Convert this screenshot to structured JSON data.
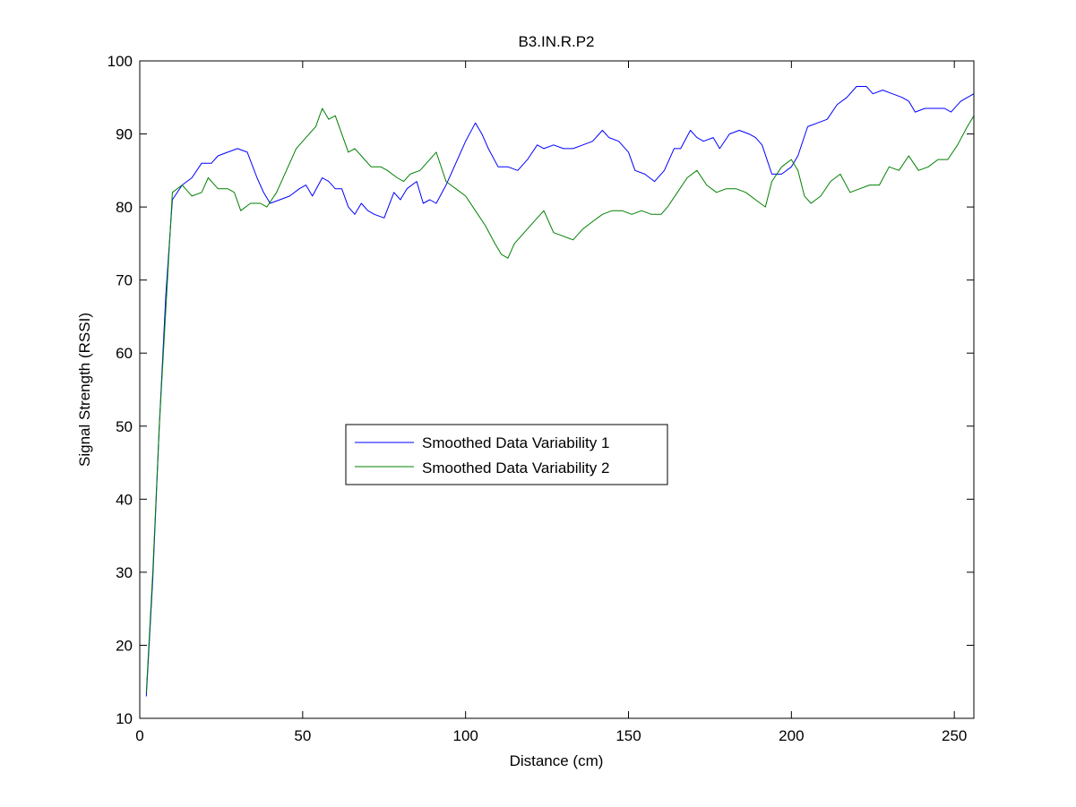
{
  "chart_data": {
    "type": "line",
    "title": "B3.IN.R.P2",
    "xlabel": "Distance (cm)",
    "ylabel": "Signal Strength (RSSI)",
    "xlim": [
      0,
      256
    ],
    "ylim": [
      10,
      100
    ],
    "xticks": [
      0,
      50,
      100,
      150,
      200,
      250
    ],
    "yticks": [
      10,
      20,
      30,
      40,
      50,
      60,
      70,
      80,
      90,
      100
    ],
    "grid": false,
    "legend_position": "center-left",
    "series": [
      {
        "name": "Smoothed Data Variability 1",
        "color": "#0000ff",
        "points": [
          [
            2,
            13
          ],
          [
            4,
            29
          ],
          [
            6,
            50
          ],
          [
            8,
            68
          ],
          [
            10,
            81
          ],
          [
            13,
            83
          ],
          [
            16,
            84
          ],
          [
            19,
            86
          ],
          [
            22,
            86
          ],
          [
            24,
            87
          ],
          [
            27,
            87.5
          ],
          [
            30,
            88
          ],
          [
            33,
            87.5
          ],
          [
            36,
            84
          ],
          [
            38,
            82
          ],
          [
            40,
            80.5
          ],
          [
            43,
            81
          ],
          [
            46,
            81.5
          ],
          [
            49,
            82.5
          ],
          [
            51,
            83
          ],
          [
            53,
            81.5
          ],
          [
            56,
            84
          ],
          [
            58,
            83.5
          ],
          [
            60,
            82.5
          ],
          [
            62,
            82.5
          ],
          [
            64,
            80
          ],
          [
            66,
            79
          ],
          [
            68,
            80.5
          ],
          [
            70,
            79.5
          ],
          [
            72,
            79
          ],
          [
            75,
            78.5
          ],
          [
            78,
            82
          ],
          [
            80,
            81
          ],
          [
            82,
            82.5
          ],
          [
            85,
            83.5
          ],
          [
            87,
            80.5
          ],
          [
            89,
            81
          ],
          [
            91,
            80.5
          ],
          [
            94,
            83
          ],
          [
            97,
            86
          ],
          [
            100,
            89
          ],
          [
            103,
            91.5
          ],
          [
            105,
            90
          ],
          [
            107,
            88
          ],
          [
            110,
            85.5
          ],
          [
            113,
            85.5
          ],
          [
            116,
            85
          ],
          [
            119,
            86.5
          ],
          [
            122,
            88.5
          ],
          [
            124,
            88
          ],
          [
            127,
            88.5
          ],
          [
            130,
            88
          ],
          [
            133,
            88
          ],
          [
            136,
            88.5
          ],
          [
            139,
            89
          ],
          [
            142,
            90.5
          ],
          [
            144,
            89.5
          ],
          [
            147,
            89
          ],
          [
            150,
            87.5
          ],
          [
            152,
            85
          ],
          [
            155,
            84.5
          ],
          [
            158,
            83.5
          ],
          [
            161,
            85
          ],
          [
            164,
            88
          ],
          [
            166,
            88
          ],
          [
            169,
            90.5
          ],
          [
            171,
            89.5
          ],
          [
            173,
            89
          ],
          [
            176,
            89.5
          ],
          [
            178,
            88
          ],
          [
            181,
            90
          ],
          [
            184,
            90.5
          ],
          [
            187,
            90
          ],
          [
            189,
            89.5
          ],
          [
            191,
            88.5
          ],
          [
            194,
            84.5
          ],
          [
            197,
            84.5
          ],
          [
            200,
            85.5
          ],
          [
            202,
            87
          ],
          [
            205,
            91
          ],
          [
            208,
            91.5
          ],
          [
            211,
            92
          ],
          [
            214,
            94
          ],
          [
            217,
            95
          ],
          [
            220,
            96.5
          ],
          [
            223,
            96.5
          ],
          [
            225,
            95.5
          ],
          [
            228,
            96
          ],
          [
            231,
            95.5
          ],
          [
            234,
            95
          ],
          [
            236,
            94.5
          ],
          [
            238,
            93
          ],
          [
            241,
            93.5
          ],
          [
            244,
            93.5
          ],
          [
            247,
            93.5
          ],
          [
            249,
            93
          ],
          [
            252,
            94.5
          ],
          [
            256,
            95.5
          ]
        ]
      },
      {
        "name": "Smoothed Data Variability 2",
        "color": "#008000",
        "points": [
          [
            2,
            13.5
          ],
          [
            4,
            30
          ],
          [
            6,
            50
          ],
          [
            8,
            66
          ],
          [
            10,
            82
          ],
          [
            13,
            83
          ],
          [
            16,
            81.5
          ],
          [
            19,
            82
          ],
          [
            21,
            84
          ],
          [
            24,
            82.5
          ],
          [
            27,
            82.5
          ],
          [
            29,
            82
          ],
          [
            31,
            79.5
          ],
          [
            34,
            80.5
          ],
          [
            37,
            80.5
          ],
          [
            39,
            80
          ],
          [
            42,
            82
          ],
          [
            45,
            85
          ],
          [
            48,
            88
          ],
          [
            51,
            89.5
          ],
          [
            54,
            91
          ],
          [
            56,
            93.5
          ],
          [
            58,
            92
          ],
          [
            60,
            92.5
          ],
          [
            62,
            90
          ],
          [
            64,
            87.5
          ],
          [
            66,
            88
          ],
          [
            68,
            87
          ],
          [
            71,
            85.5
          ],
          [
            74,
            85.5
          ],
          [
            76,
            85
          ],
          [
            79,
            84
          ],
          [
            81,
            83.5
          ],
          [
            83,
            84.5
          ],
          [
            86,
            85
          ],
          [
            89,
            86.5
          ],
          [
            91,
            87.5
          ],
          [
            94,
            83.5
          ],
          [
            97,
            82.5
          ],
          [
            100,
            81.5
          ],
          [
            103,
            79.5
          ],
          [
            106,
            77.5
          ],
          [
            109,
            75
          ],
          [
            111,
            73.5
          ],
          [
            113,
            73
          ],
          [
            115,
            75
          ],
          [
            118,
            76.5
          ],
          [
            121,
            78
          ],
          [
            124,
            79.5
          ],
          [
            127,
            76.5
          ],
          [
            130,
            76
          ],
          [
            133,
            75.5
          ],
          [
            136,
            77
          ],
          [
            139,
            78
          ],
          [
            142,
            79
          ],
          [
            145,
            79.5
          ],
          [
            148,
            79.5
          ],
          [
            151,
            79
          ],
          [
            154,
            79.5
          ],
          [
            157,
            79
          ],
          [
            160,
            79
          ],
          [
            162,
            80
          ],
          [
            165,
            82
          ],
          [
            168,
            84
          ],
          [
            171,
            85
          ],
          [
            174,
            83
          ],
          [
            177,
            82
          ],
          [
            180,
            82.5
          ],
          [
            183,
            82.5
          ],
          [
            186,
            82
          ],
          [
            189,
            81
          ],
          [
            192,
            80
          ],
          [
            194,
            83.5
          ],
          [
            197,
            85.5
          ],
          [
            200,
            86.5
          ],
          [
            202,
            85
          ],
          [
            204,
            81.5
          ],
          [
            206,
            80.5
          ],
          [
            209,
            81.5
          ],
          [
            212,
            83.5
          ],
          [
            215,
            84.5
          ],
          [
            218,
            82
          ],
          [
            221,
            82.5
          ],
          [
            224,
            83
          ],
          [
            227,
            83
          ],
          [
            230,
            85.5
          ],
          [
            233,
            85
          ],
          [
            236,
            87
          ],
          [
            239,
            85
          ],
          [
            242,
            85.5
          ],
          [
            245,
            86.5
          ],
          [
            248,
            86.5
          ],
          [
            251,
            88.5
          ],
          [
            254,
            91
          ],
          [
            256,
            92.5
          ]
        ]
      }
    ]
  }
}
